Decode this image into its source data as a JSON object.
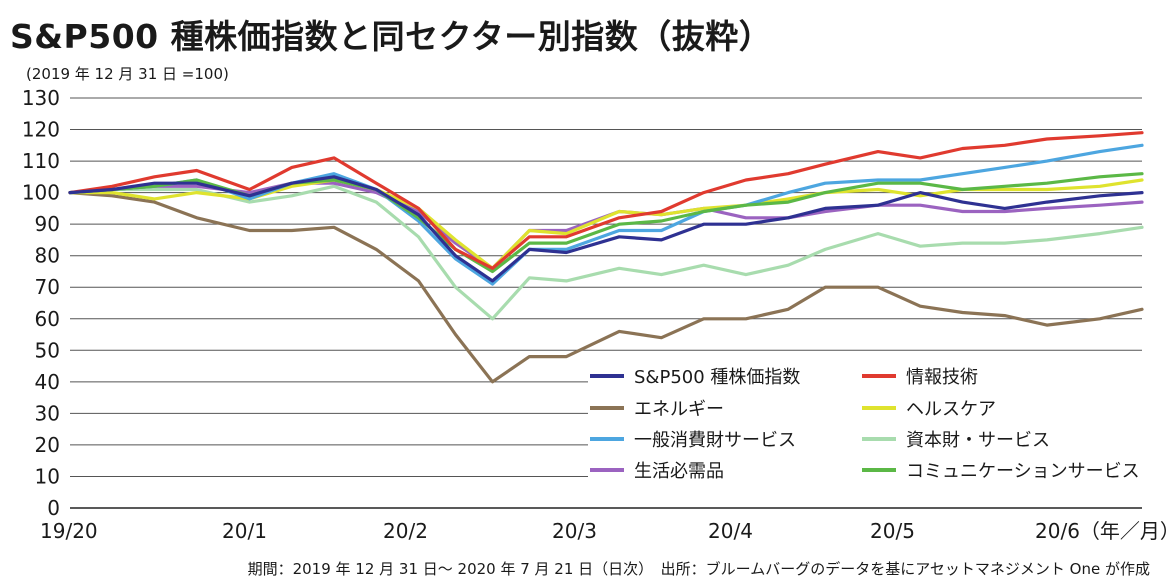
{
  "title": "S&P500 種株価指数と同セクター別指数（抜粋）",
  "subtitle": "(2019 年 12 月 31 日 =100)",
  "footer": "期間：2019 年 12 月 31 日～ 2020 年 7 月 21 日（日次）　出所：ブルームバーグのデータを基にアセットマネジメント One が作成",
  "chart_data": {
    "type": "line",
    "ylim": [
      0,
      130
    ],
    "yticks": [
      "0",
      "10",
      "20",
      "30",
      "40",
      "50",
      "60",
      "70",
      "80",
      "90",
      "100",
      "110",
      "120",
      "130"
    ],
    "xticks": [
      "19/20",
      "20/1",
      "20/2",
      "20/3",
      "20/4",
      "20/5",
      "20/6（年／月）"
    ],
    "grid": "horizontal",
    "legend_position": "bottom-right",
    "x": [
      "2019-12-31",
      "2020-01-08",
      "2020-01-16",
      "2020-01-24",
      "2020-02-03",
      "2020-02-11",
      "2020-02-19",
      "2020-02-27",
      "2020-03-06",
      "2020-03-13",
      "2020-03-20",
      "2020-03-27",
      "2020-04-03",
      "2020-04-13",
      "2020-04-21",
      "2020-04-29",
      "2020-05-07",
      "2020-05-15",
      "2020-05-22",
      "2020-06-01",
      "2020-06-09",
      "2020-06-17",
      "2020-06-25",
      "2020-07-03",
      "2020-07-13",
      "2020-07-21"
    ],
    "series": [
      {
        "name": "S&P500 種株価指数",
        "color": "#2e3192",
        "values": [
          100,
          101,
          103,
          103,
          99,
          103,
          105,
          101,
          93,
          80,
          72,
          82,
          81,
          86,
          85,
          90,
          90,
          92,
          95,
          96,
          100,
          97,
          95,
          97,
          99,
          100
        ]
      },
      {
        "name": "情報技術",
        "color": "#e03a2f",
        "values": [
          100,
          102,
          105,
          107,
          101,
          108,
          111,
          103,
          95,
          82,
          76,
          86,
          86,
          92,
          94,
          100,
          104,
          106,
          109,
          113,
          111,
          114,
          115,
          117,
          118,
          119
        ]
      },
      {
        "name": "エネルギー",
        "color": "#8b7355",
        "values": [
          100,
          99,
          97,
          92,
          88,
          88,
          89,
          82,
          72,
          55,
          40,
          48,
          48,
          56,
          54,
          60,
          60,
          63,
          70,
          70,
          64,
          62,
          61,
          58,
          60,
          63
        ]
      },
      {
        "name": "ヘルスケア",
        "color": "#dfe32e",
        "values": [
          100,
          100,
          98,
          100,
          98,
          102,
          104,
          101,
          95,
          85,
          76,
          88,
          87,
          94,
          93,
          95,
          96,
          98,
          100,
          101,
          99,
          101,
          101,
          101,
          102,
          104
        ]
      },
      {
        "name": "一般消費財サービス",
        "color": "#4da6e0",
        "values": [
          100,
          101,
          102,
          104,
          98,
          103,
          106,
          101,
          91,
          79,
          71,
          82,
          82,
          88,
          88,
          94,
          96,
          100,
          103,
          104,
          104,
          106,
          108,
          110,
          113,
          115
        ]
      },
      {
        "name": "資本財・サービス",
        "color": "#a8dcae",
        "values": [
          100,
          101,
          101,
          101,
          97,
          99,
          102,
          97,
          86,
          70,
          60,
          73,
          72,
          76,
          74,
          77,
          74,
          77,
          82,
          87,
          83,
          84,
          84,
          85,
          87,
          89
        ]
      },
      {
        "name": "生活必需品",
        "color": "#9b63c0",
        "values": [
          100,
          101,
          102,
          102,
          100,
          103,
          103,
          100,
          94,
          84,
          76,
          88,
          88,
          94,
          93,
          95,
          92,
          92,
          94,
          96,
          96,
          94,
          94,
          95,
          96,
          97
        ]
      },
      {
        "name": "コミュニケーションサービス",
        "color": "#5bb846",
        "values": [
          100,
          101,
          102,
          104,
          99,
          103,
          104,
          101,
          92,
          82,
          75,
          84,
          84,
          90,
          91,
          94,
          96,
          97,
          100,
          103,
          103,
          101,
          102,
          103,
          105,
          106
        ]
      }
    ]
  }
}
